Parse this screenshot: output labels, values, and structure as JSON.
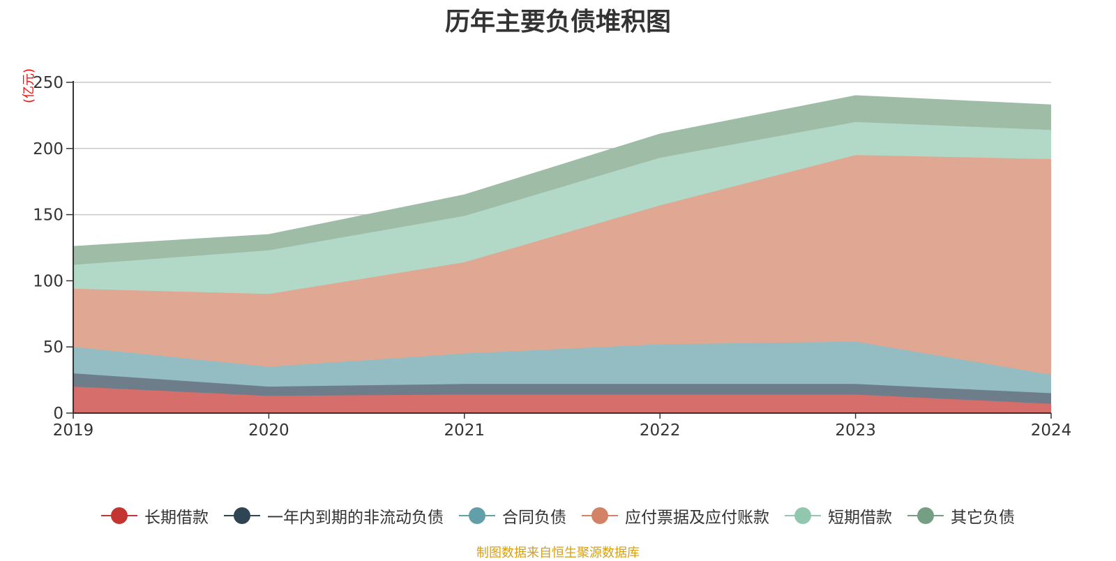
{
  "chart_data": {
    "type": "area",
    "stacked": true,
    "title": "历年主要负债堆积图",
    "ylabel": "(亿元)",
    "xlabel": "",
    "ylim": [
      0,
      250
    ],
    "yticks": [
      0,
      50,
      100,
      150,
      200,
      250
    ],
    "categories": [
      "2019",
      "2020",
      "2021",
      "2022",
      "2023",
      "2024"
    ],
    "grid": true,
    "legend_position": "bottom",
    "series": [
      {
        "name": "长期借款",
        "color": "#c23531",
        "fill": "#d66e6b",
        "values": [
          20,
          13,
          14,
          14,
          14,
          7
        ]
      },
      {
        "name": "一年内到期的非流动负债",
        "color": "#2f4554",
        "fill": "#6e7d8a",
        "values": [
          10,
          7,
          8,
          8,
          8,
          8
        ]
      },
      {
        "name": "合同负债",
        "color": "#61a0a8",
        "fill": "#93bdc3",
        "values": [
          20,
          15,
          23,
          30,
          32,
          14
        ]
      },
      {
        "name": "应付票据及应付账款",
        "color": "#d48265",
        "fill": "#e0a792",
        "values": [
          44,
          55,
          69,
          105,
          141,
          163
        ]
      },
      {
        "name": "短期借款",
        "color": "#91c7ae",
        "fill": "#b2d9c7",
        "values": [
          18,
          33,
          35,
          36,
          25,
          22
        ]
      },
      {
        "name": "其它负债",
        "color": "#749f83",
        "fill": "#9fbca7",
        "values": [
          14,
          12,
          16,
          18,
          20,
          19
        ]
      }
    ]
  },
  "source_note": "制图数据来自恒生聚源数据库"
}
